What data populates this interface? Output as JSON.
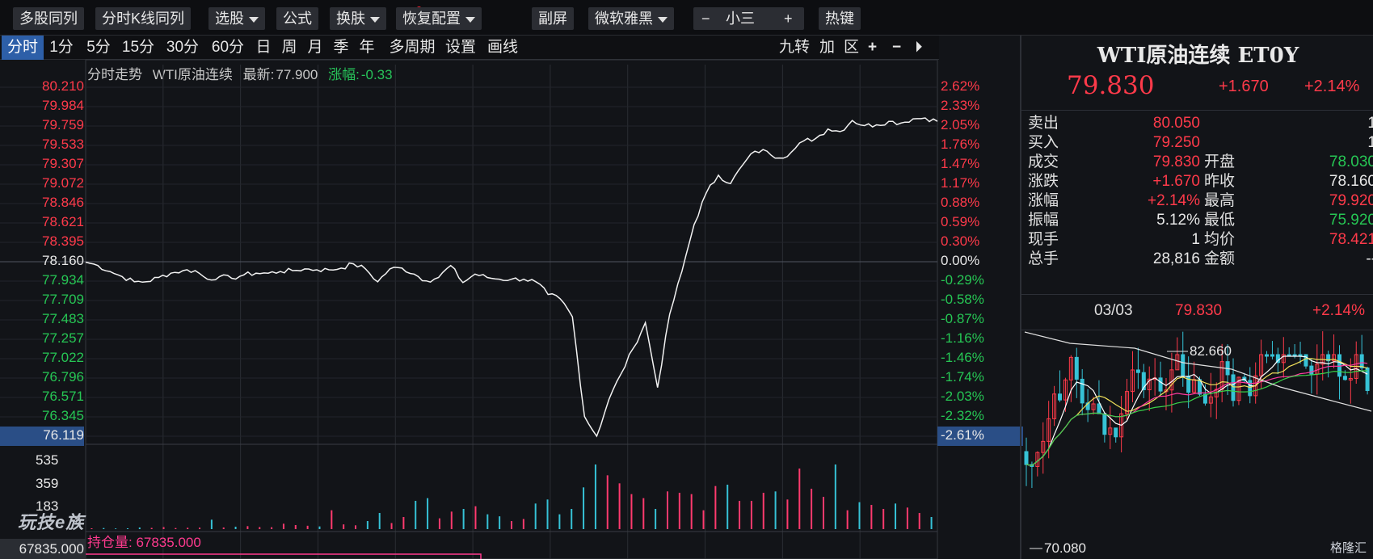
{
  "toolbar": {
    "items": [
      {
        "label": "多股同列",
        "dropdown": false
      },
      {
        "label": "分时K线同列",
        "dropdown": false
      },
      {
        "label": "选股",
        "dropdown": true
      },
      {
        "label": "公式",
        "dropdown": false
      },
      {
        "label": "换肤",
        "dropdown": true
      },
      {
        "label": "恢复配置",
        "dropdown": true
      },
      {
        "label": "副屏",
        "dropdown": false
      },
      {
        "label": "微软雅黑",
        "dropdown": true
      },
      {
        "label": "小三",
        "dropdown": false
      },
      {
        "label": "热键",
        "dropdown": false
      }
    ],
    "font_minus": "−",
    "font_plus": "+"
  },
  "periods": [
    "分时",
    "1分",
    "5分",
    "15分",
    "30分",
    "60分",
    "日",
    "周",
    "月",
    "季",
    "年",
    "多周期",
    "设置",
    "画线"
  ],
  "active_period": "分时",
  "chart_controls": [
    "九转",
    "加",
    "区",
    "+",
    "−",
    "⏵"
  ],
  "info": {
    "title": "分时走势",
    "name": "WTI原油连续",
    "latest_label": "最新:",
    "latest": "77.900",
    "change_label": "涨幅:",
    "change": "-0.33"
  },
  "price_axis": {
    "left": [
      "80.210",
      "79.984",
      "79.759",
      "79.533",
      "79.307",
      "79.072",
      "78.846",
      "78.621",
      "78.395",
      "78.160",
      "77.934",
      "77.709",
      "77.483",
      "77.257",
      "77.022",
      "76.796",
      "76.571",
      "76.345",
      "76.119"
    ],
    "right": [
      "2.62%",
      "2.33%",
      "2.05%",
      "1.76%",
      "1.47%",
      "1.17%",
      "0.88%",
      "0.59%",
      "0.30%",
      "0.00%",
      "-0.29%",
      "-0.58%",
      "-0.87%",
      "-1.16%",
      "-1.46%",
      "-1.74%",
      "-2.03%",
      "-2.32%",
      "-2.61%"
    ]
  },
  "volume_axis": [
    "535",
    "359",
    "183"
  ],
  "watermark": "玩技e族",
  "open_interest": {
    "label": "持仓量: 67835.000",
    "value": "67835.000"
  },
  "chart_data": {
    "type": "line",
    "series": [
      {
        "name": "WTI原油连续",
        "values": [
          78.16,
          78.12,
          78.05,
          77.99,
          77.93,
          77.93,
          77.98,
          78.03,
          78.06,
          78.06,
          77.96,
          77.99,
          77.97,
          78.01,
          78.03,
          78.03,
          78.05,
          78.06,
          78.08,
          78.07,
          78.07,
          78.09,
          78.14,
          78.08,
          77.93,
          78.08,
          78.09,
          78.02,
          77.94,
          77.98,
          78.12,
          77.92,
          78.02,
          77.98,
          77.96,
          77.96,
          77.96,
          77.93,
          77.78,
          77.73,
          77.52,
          76.35,
          76.12,
          76.55,
          76.85,
          77.15,
          77.45,
          76.69,
          77.55,
          78.05,
          78.6,
          78.97,
          79.18,
          79.08,
          79.3,
          79.46,
          79.46,
          79.38,
          79.45,
          79.58,
          79.61,
          79.72,
          79.69,
          79.82,
          79.76,
          79.77,
          79.81,
          79.79,
          79.84,
          79.85,
          79.81
        ]
      }
    ],
    "ylim": [
      76.119,
      80.21
    ],
    "base": 78.16,
    "volume": [
      6,
      8,
      5,
      6,
      12,
      9,
      15,
      8,
      10,
      11,
      70,
      12,
      18,
      22,
      15,
      14,
      40,
      30,
      25,
      20,
      140,
      35,
      28,
      60,
      120,
      45,
      90,
      210,
      230,
      80,
      130,
      150,
      170,
      110,
      95,
      60,
      75,
      190,
      220,
      110,
      150,
      310,
      480,
      400,
      340,
      260,
      230,
      150,
      280,
      270,
      260,
      140,
      320,
      330,
      210,
      210,
      270,
      280,
      220,
      450,
      300,
      240,
      480,
      140,
      200,
      180,
      150,
      190,
      160,
      120,
      90
    ],
    "volume_ylim": [
      0,
      600
    ]
  },
  "quote": {
    "title": "WTI原油连续 ET0Y",
    "price": "79.830",
    "change": "+1.670",
    "change_pct": "+2.14%",
    "rows": [
      {
        "k1": "卖出",
        "v1": "80.050",
        "c1": "red",
        "k2": "",
        "v2": "1",
        "c2": "white"
      },
      {
        "k1": "买入",
        "v1": "79.250",
        "c1": "red",
        "k2": "",
        "v2": "1",
        "c2": "white"
      },
      {
        "k1": "成交",
        "v1": "79.830",
        "c1": "red",
        "k2": "开盘",
        "v2": "78.030",
        "c2": "green"
      },
      {
        "k1": "涨跌",
        "v1": "+1.670",
        "c1": "red",
        "k2": "昨收",
        "v2": "78.160",
        "c2": "white"
      },
      {
        "k1": "涨幅",
        "v1": "+2.14%",
        "c1": "red",
        "k2": "最高",
        "v2": "79.920",
        "c2": "red"
      },
      {
        "k1": "振幅",
        "v1": "5.12%",
        "c1": "white",
        "k2": "最低",
        "v2": "75.920",
        "c2": "green"
      },
      {
        "k1": "现手",
        "v1": "1",
        "c1": "white",
        "k2": "均价",
        "v2": "78.421",
        "c2": "red"
      },
      {
        "k1": "总手",
        "v1": "28,816",
        "c1": "white",
        "k2": "金额",
        "v2": "--",
        "c2": "white"
      }
    ]
  },
  "kline_header": {
    "date": "03/03",
    "price": "79.830",
    "change": "+2.14%"
  },
  "kline": {
    "high_label": "82.660",
    "low_label": "70.080"
  },
  "brand": "格隆汇",
  "colors": {
    "up": "#ff3a4a",
    "down": "#26c654",
    "accent": "#2d5fa8",
    "bg": "#121418"
  }
}
